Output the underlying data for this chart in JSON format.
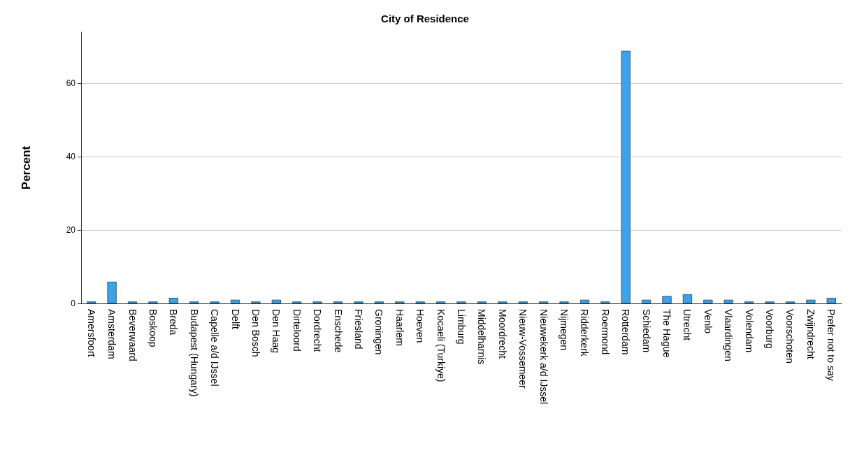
{
  "chart_data": {
    "type": "bar",
    "title": "City of Residence",
    "ylabel": "Percent",
    "categories": [
      "Amersfoort",
      "Amsterdam",
      "Beverwaard",
      "Boskoop",
      "Breda",
      "Budapest (Hungary)",
      "Capelle a/d IJssel",
      "Delft",
      "Den Bosch",
      "Den Haag",
      "Dirteloord",
      "Dordrecht",
      "Enschede",
      "Friesland",
      "Groningen",
      "Haarlem",
      "Hoeven",
      "Kocaeli (Turkiye)",
      "Limburg",
      "Middelharnis",
      "Moordrecht",
      "Nieuw-Vossemeer",
      "Nieuwekerk a/d IJssel",
      "Nijmegen",
      "Ridderkerk",
      "Roermond",
      "Rotterdam",
      "Schiedam",
      "The Hague",
      "Utrecht",
      "Venlo",
      "Vlaardingen",
      "Volendam",
      "Voorburg",
      "Voorschoten",
      "Zwijndrecht",
      "Prefer not to say"
    ],
    "values": [
      0.5,
      5.9,
      0.5,
      0.5,
      1.5,
      0.5,
      0.5,
      1.0,
      0.5,
      1.0,
      0.5,
      0.5,
      0.5,
      0.5,
      0.5,
      0.5,
      0.5,
      0.5,
      0.5,
      0.5,
      0.5,
      0.5,
      0.5,
      0.5,
      1.0,
      0.5,
      68.9,
      1.0,
      2.0,
      2.5,
      1.0,
      1.0,
      0.5,
      0.5,
      0.5,
      1.0,
      1.5
    ],
    "color": "#3aa3ea",
    "ylim": [
      0,
      74
    ],
    "yticks": [
      0,
      20,
      40,
      60
    ],
    "grid": "y"
  }
}
